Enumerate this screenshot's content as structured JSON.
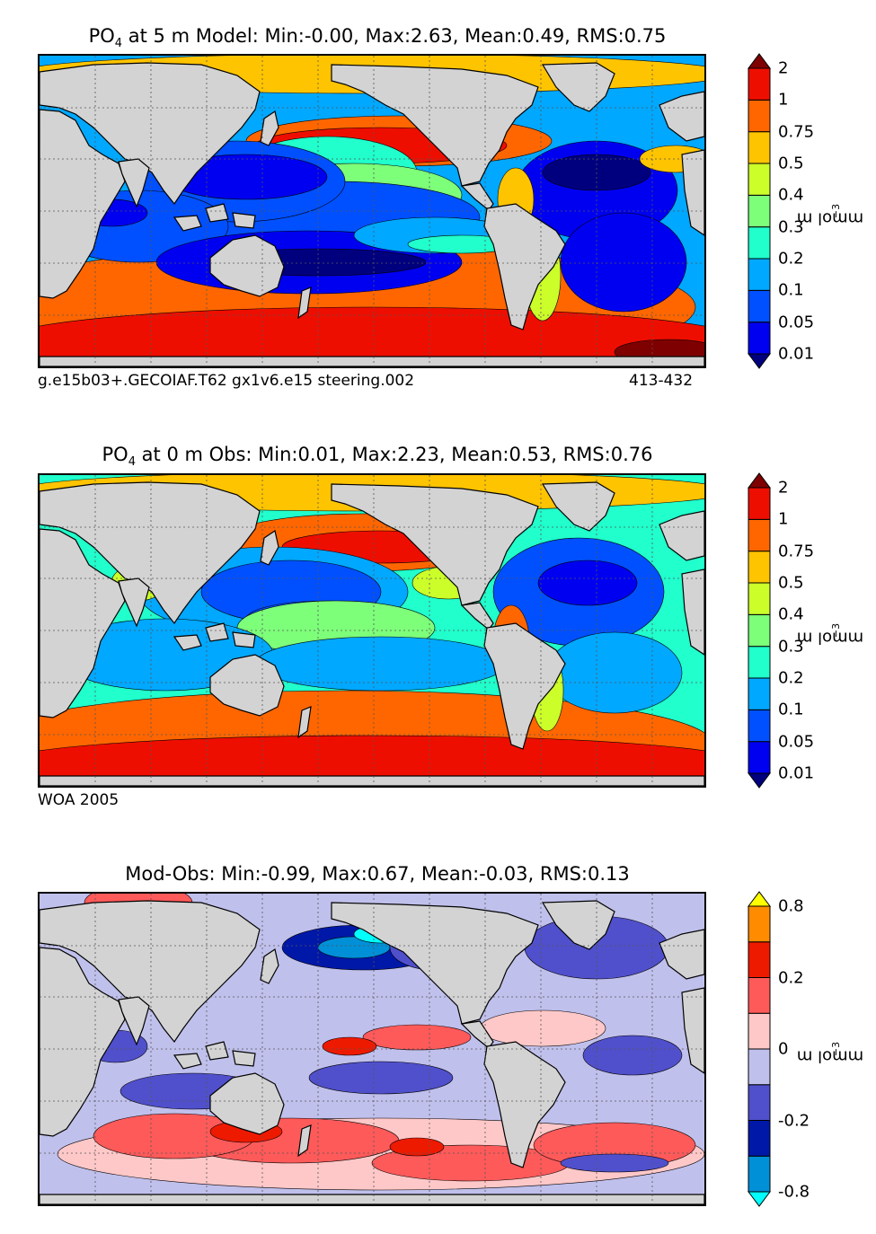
{
  "chart_data": [
    {
      "type": "heatmap",
      "title_pre": "PO",
      "title_sub": "4",
      "title_post": " at 5 m Model: Min:-0.00, Max:2.63, Mean:0.49, RMS:0.75",
      "footer_left": "g.e15b03+.GECOIAF.T62 gx1v6.e15 steering.002",
      "footer_right": "413-432",
      "colorbar_label": "mmol m",
      "colorbar_exp": "−3",
      "levels": [
        "0.01",
        "0.05",
        "0.1",
        "0.2",
        "0.3",
        "0.4",
        "0.5",
        "0.75",
        "1",
        "2"
      ],
      "colors": [
        "#00007f",
        "#0000f0",
        "#0050ff",
        "#00a8ff",
        "#20ffcc",
        "#7dff7a",
        "#ccff2a",
        "#ffc400",
        "#ff6600",
        "#ee0e00",
        "#7f0000"
      ],
      "field": "model"
    },
    {
      "type": "heatmap",
      "title_pre": "PO",
      "title_sub": "4",
      "title_post": " at 0 m Obs: Min:0.01, Max:2.23, Mean:0.53, RMS:0.76",
      "footer_left": "WOA 2005",
      "footer_right": "",
      "colorbar_label": "mmol m",
      "colorbar_exp": "−3",
      "levels": [
        "0.01",
        "0.05",
        "0.1",
        "0.2",
        "0.3",
        "0.4",
        "0.5",
        "0.75",
        "1",
        "2"
      ],
      "colors": [
        "#00007f",
        "#0000f0",
        "#0050ff",
        "#00a8ff",
        "#20ffcc",
        "#7dff7a",
        "#ccff2a",
        "#ffc400",
        "#ff6600",
        "#ee0e00",
        "#7f0000"
      ],
      "field": "obs"
    },
    {
      "type": "heatmap",
      "title_pre": "",
      "title_sub": "",
      "title_post": "Mod-Obs: Min:-0.99, Max:0.67, Mean:-0.03, RMS:0.13",
      "footer_left": "",
      "footer_right": "",
      "colorbar_label": "mmol m",
      "colorbar_exp": "−3",
      "levels": [
        "-0.8",
        "",
        "-0.2",
        "",
        "0",
        "",
        "0.2",
        "",
        "0.8"
      ],
      "colors": [
        "#00ffff",
        "#0090d8",
        "#0018a8",
        "#5050cc",
        "#c0c0ec",
        "#ffc8c8",
        "#ff5a5a",
        "#ee1a00",
        "#ff8c00",
        "#ffff00"
      ],
      "field": "diff"
    }
  ]
}
